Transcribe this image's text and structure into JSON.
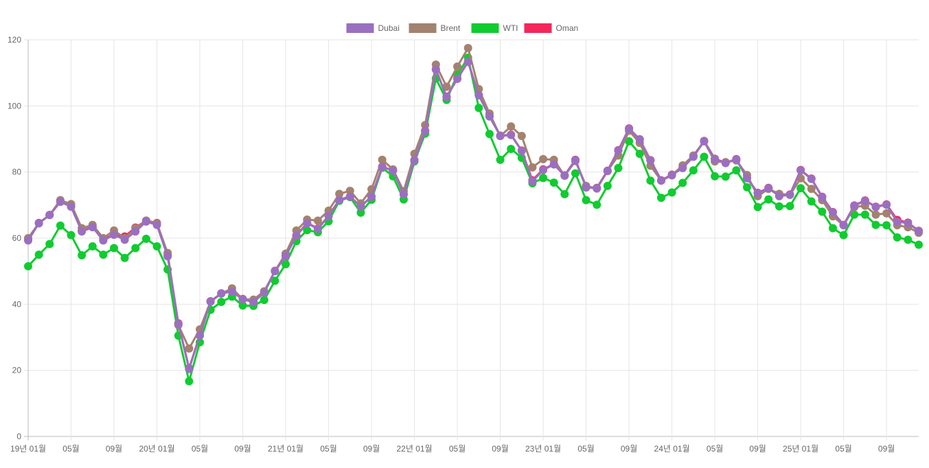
{
  "chart_data": {
    "type": "line",
    "title": "",
    "xlabel": "",
    "ylabel": "",
    "ylim": [
      0,
      120
    ],
    "y_ticks": [
      0,
      20,
      40,
      60,
      80,
      100,
      120
    ],
    "grid": true,
    "legend_position": "top-center",
    "x_start": "2019-01",
    "x_count": 84,
    "x_tick_every": 4,
    "x_tick_labels": [
      "19년 01월",
      "05월",
      "09월",
      "20년 01월",
      "05월",
      "09월",
      "21년 01월",
      "05월",
      "09월",
      "22년 01월",
      "05월",
      "09월",
      "23년 01월",
      "05월",
      "09월",
      "24년 01월",
      "05월",
      "09월",
      "25년 01월",
      "05월",
      "09월"
    ],
    "series": [
      {
        "name": "Dubai",
        "color": "#9b6fc0",
        "values": [
          59.3,
          64.5,
          67,
          71,
          69.5,
          62,
          63.3,
          59.3,
          61,
          59.5,
          62,
          65,
          64,
          54.5,
          34,
          20.4,
          30.5,
          40.8,
          43.3,
          43.8,
          41.5,
          40.6,
          43.5,
          50,
          54.5,
          60.7,
          64.5,
          62.8,
          66.6,
          71.5,
          72.5,
          69.5,
          72.5,
          81.5,
          80.4,
          73.2,
          83.5,
          92.4,
          111,
          102.7,
          108.2,
          113.3,
          103.2,
          96.8,
          90.9,
          91.2,
          86.4,
          77.2,
          80.6,
          82.3,
          78.9,
          83.6,
          75.3,
          75.1,
          80.3,
          86.5,
          93.1,
          89.8,
          83.5,
          77.4,
          79.1,
          81.2,
          84.6,
          89.3,
          83.9,
          82.7,
          83.8,
          78.1,
          73.6,
          75.1,
          72.7,
          73.1,
          80.5,
          77.9,
          72.4,
          67.8,
          63.9,
          69.8,
          71.3,
          69.4,
          70.1,
          64.9,
          64.6,
          62.1
        ]
      },
      {
        "name": "Brent",
        "color": "#a3826f",
        "values": [
          60,
          64.5,
          67,
          71.5,
          70.3,
          63,
          64,
          60,
          62.3,
          60,
          63,
          65.3,
          64.5,
          55.5,
          33.7,
          26.6,
          32.4,
          40.8,
          43.2,
          44.8,
          41.5,
          41.4,
          43.9,
          50,
          55.3,
          62.3,
          65.6,
          65.3,
          68.3,
          73.4,
          74.3,
          70.5,
          74.8,
          83.7,
          80.8,
          74.2,
          85.5,
          94.2,
          112.5,
          105.8,
          111.9,
          117.5,
          105.1,
          97.7,
          90.9,
          93.8,
          90.9,
          81.4,
          83.9,
          83.7,
          78.9,
          83.3,
          75.8,
          75,
          80.3,
          85,
          92.5,
          88.8,
          81.9,
          77.4,
          79,
          82,
          85,
          89.3,
          83.2,
          83,
          83.5,
          79.1,
          72.7,
          74.9,
          73.4,
          73.1,
          78.1,
          74.9,
          71.5,
          66.6,
          63.9,
          69.4,
          69.8,
          67.1,
          67.5,
          63.9,
          63.3,
          61.6
        ]
      },
      {
        "name": "WTI",
        "color": "#10cc30",
        "values": [
          51.5,
          55,
          58.2,
          63.8,
          60.9,
          54.8,
          57.5,
          55,
          57,
          54,
          57,
          59.8,
          57.5,
          50.5,
          30.5,
          16.7,
          28.5,
          38.3,
          40.7,
          42.3,
          39.6,
          39.5,
          41.3,
          47.1,
          52.1,
          59.1,
          62.4,
          61.8,
          65.1,
          71.3,
          72.4,
          67.7,
          71.6,
          81.3,
          78.7,
          71.7,
          83.2,
          91.6,
          108.3,
          101.8,
          109.5,
          114.6,
          99.4,
          91.5,
          83.7,
          87,
          84.3,
          76.6,
          78.2,
          76.8,
          73.3,
          79.6,
          71.5,
          70.1,
          75.8,
          81.2,
          89.3,
          85.5,
          77.4,
          72.2,
          73.8,
          76.7,
          80.5,
          84.6,
          78.7,
          78.6,
          80.5,
          75.4,
          69.4,
          71.7,
          69.6,
          69.7,
          75.1,
          71.1,
          68,
          63,
          60.9,
          67.1,
          67.1,
          64,
          63.9,
          60.2,
          59.5,
          58
        ]
      },
      {
        "name": "Oman",
        "color": "#f52659",
        "values": [
          59.5,
          64.6,
          67,
          71,
          69.6,
          62.2,
          63.4,
          59.5,
          61.2,
          60.5,
          63.2,
          65.3,
          64.6,
          54.8,
          34.2,
          20.6,
          30.6,
          40.9,
          43.3,
          43.9,
          41.6,
          40.7,
          43.6,
          50.1,
          54.6,
          60.8,
          64.6,
          62.9,
          66.7,
          71.6,
          72.6,
          69.6,
          72.6,
          81.6,
          80.5,
          73.3,
          83.6,
          92.5,
          111.1,
          102.8,
          108.3,
          113.4,
          103.3,
          96.9,
          91,
          91.3,
          86.5,
          77.5,
          80.8,
          82.4,
          79,
          83.7,
          75.4,
          75.2,
          80.4,
          86.6,
          93.2,
          89.9,
          83.6,
          77.5,
          79.2,
          81.3,
          84.7,
          89.4,
          84,
          82.8,
          83.9,
          78.2,
          73.7,
          75.2,
          72.8,
          73.2,
          80.6,
          78,
          72.5,
          67.9,
          64,
          69.9,
          71.4,
          69.5,
          70.2,
          65.5,
          64.7,
          62.2
        ]
      }
    ]
  }
}
